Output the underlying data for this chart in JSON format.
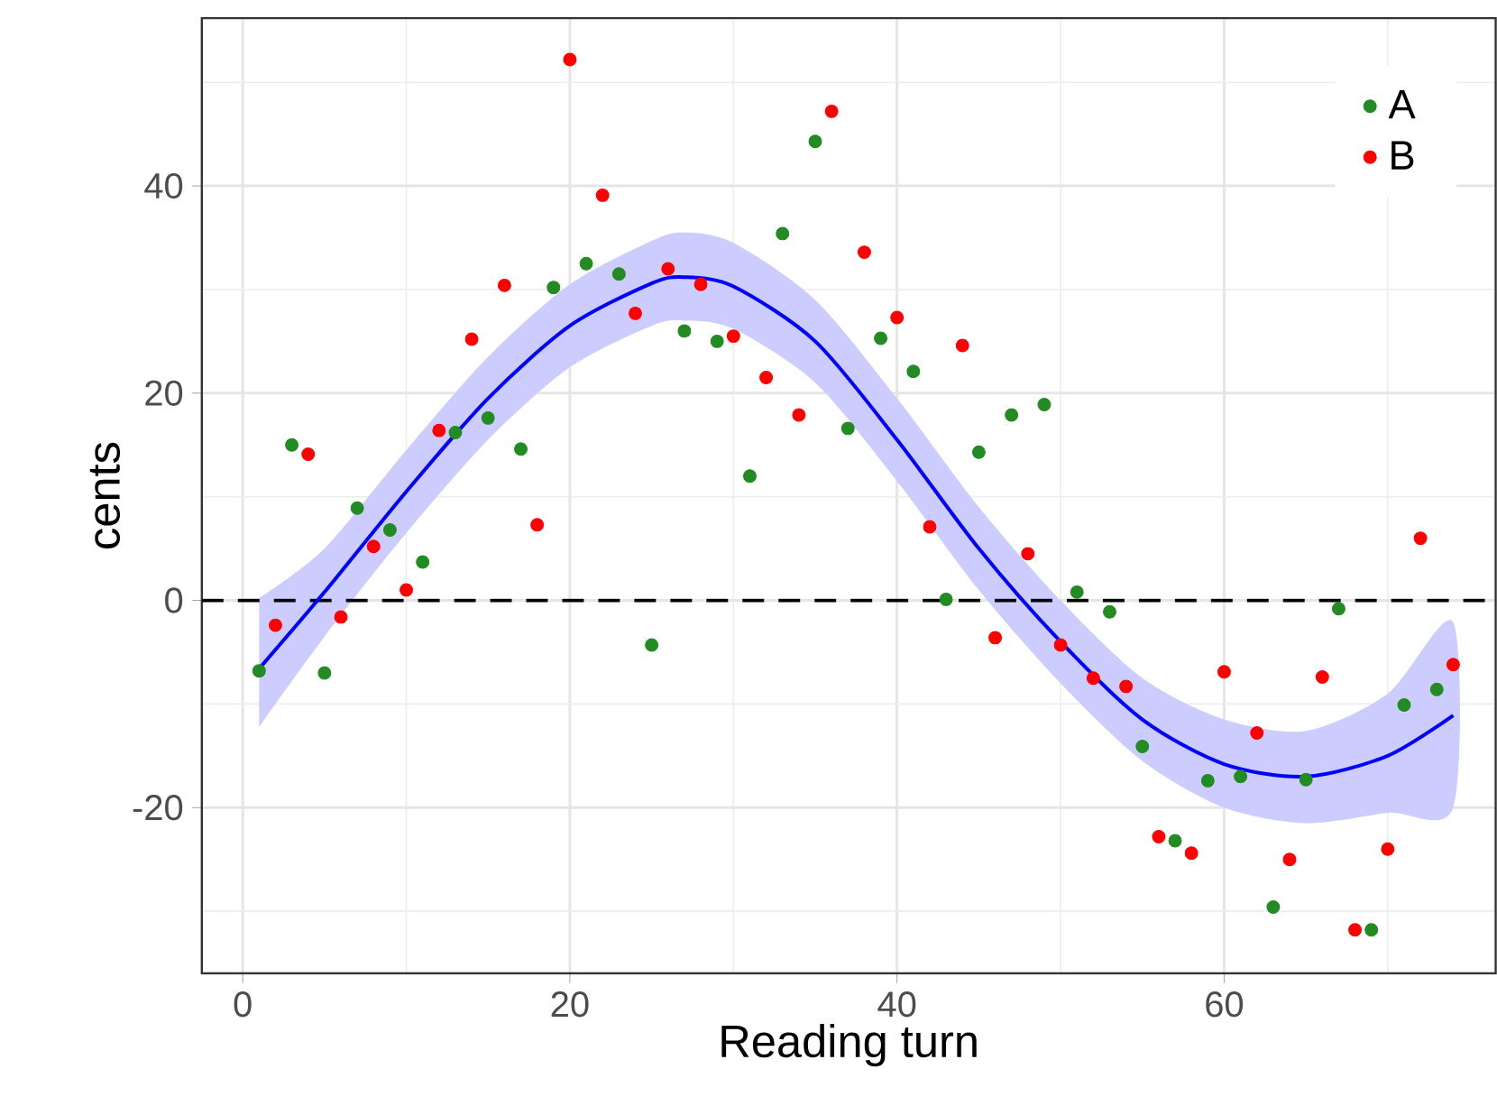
{
  "chart_data": {
    "type": "scatter",
    "xlabel": "Reading turn",
    "ylabel": "cents",
    "xlim": [
      -2.5,
      76.6
    ],
    "ylim": [
      -36,
      56.2
    ],
    "xticks": [
      0,
      20,
      40,
      60
    ],
    "yticks": [
      -20,
      0,
      20,
      40
    ],
    "grid": true,
    "legend": "top right",
    "marker": "circle",
    "ref_lines": [
      {
        "axis": "y",
        "value": 0,
        "color": "#000000",
        "line_style": "dashed"
      }
    ],
    "series": [
      {
        "type": "line",
        "color": "#0000ff",
        "line_style": "solid",
        "marker": "none",
        "x": [
          1,
          5,
          10,
          15,
          20,
          25,
          27,
          30,
          35,
          40,
          45,
          50,
          55,
          60,
          65,
          70,
          74
        ],
        "values": [
          -6.6,
          0.8,
          10.5,
          19.5,
          26.5,
          30.6,
          31.2,
          30.3,
          25,
          15.5,
          5,
          -4,
          -11.5,
          -15.8,
          -17,
          -15,
          -11.1
        ],
        "lower": [
          -12.2,
          -3.5,
          6.5,
          15.5,
          22.5,
          26.5,
          27,
          26.2,
          21,
          11.5,
          1,
          -8,
          -15.5,
          -20,
          -21.5,
          -20.5,
          -20
        ],
        "upper": [
          0.2,
          5,
          14.5,
          23.5,
          30.5,
          34.7,
          35.5,
          34.5,
          29,
          19.5,
          9,
          0,
          -7.5,
          -11.5,
          -12.6,
          -9,
          -2.1
        ]
      },
      {
        "name": "A",
        "color": "#228b22",
        "x": [
          1,
          3,
          5,
          7,
          9,
          11,
          13,
          15,
          17,
          19,
          21,
          23,
          25,
          27,
          29,
          31,
          33,
          35,
          37,
          39,
          41,
          43,
          45,
          47,
          49,
          51,
          53,
          55,
          57,
          59,
          61,
          63,
          65,
          67,
          69,
          71,
          73
        ],
        "values": [
          -6.8,
          15,
          -7,
          8.9,
          6.8,
          3.7,
          16.2,
          17.6,
          14.6,
          30.2,
          32.5,
          31.5,
          -4.3,
          26,
          25,
          12,
          35.4,
          44.3,
          16.6,
          25.3,
          22.1,
          0.1,
          14.3,
          17.9,
          18.9,
          0.8,
          -1.1,
          -14.1,
          -23.2,
          -17.4,
          -17,
          -29.6,
          -17.3,
          -0.8,
          -31.8,
          -10.1,
          -8.6
        ]
      },
      {
        "name": "B",
        "color": "#ff0000",
        "x": [
          2,
          4,
          6,
          8,
          10,
          12,
          14,
          16,
          18,
          20,
          22,
          24,
          26,
          28,
          30,
          32,
          34,
          36,
          38,
          40,
          42,
          44,
          46,
          48,
          50,
          52,
          54,
          56,
          58,
          60,
          62,
          64,
          66,
          68,
          70,
          72,
          74
        ],
        "values": [
          -2.4,
          14.1,
          -1.6,
          5.2,
          1,
          16.4,
          25.2,
          30.4,
          7.3,
          52.2,
          39.1,
          27.7,
          32,
          30.5,
          25.5,
          21.5,
          17.9,
          47.2,
          33.6,
          27.3,
          7.1,
          24.6,
          -3.6,
          4.5,
          -4.3,
          -7.5,
          -8.3,
          -22.8,
          -24.4,
          -6.9,
          -12.8,
          -25,
          -7.4,
          -31.8,
          -24,
          6,
          -6.2
        ]
      }
    ]
  }
}
